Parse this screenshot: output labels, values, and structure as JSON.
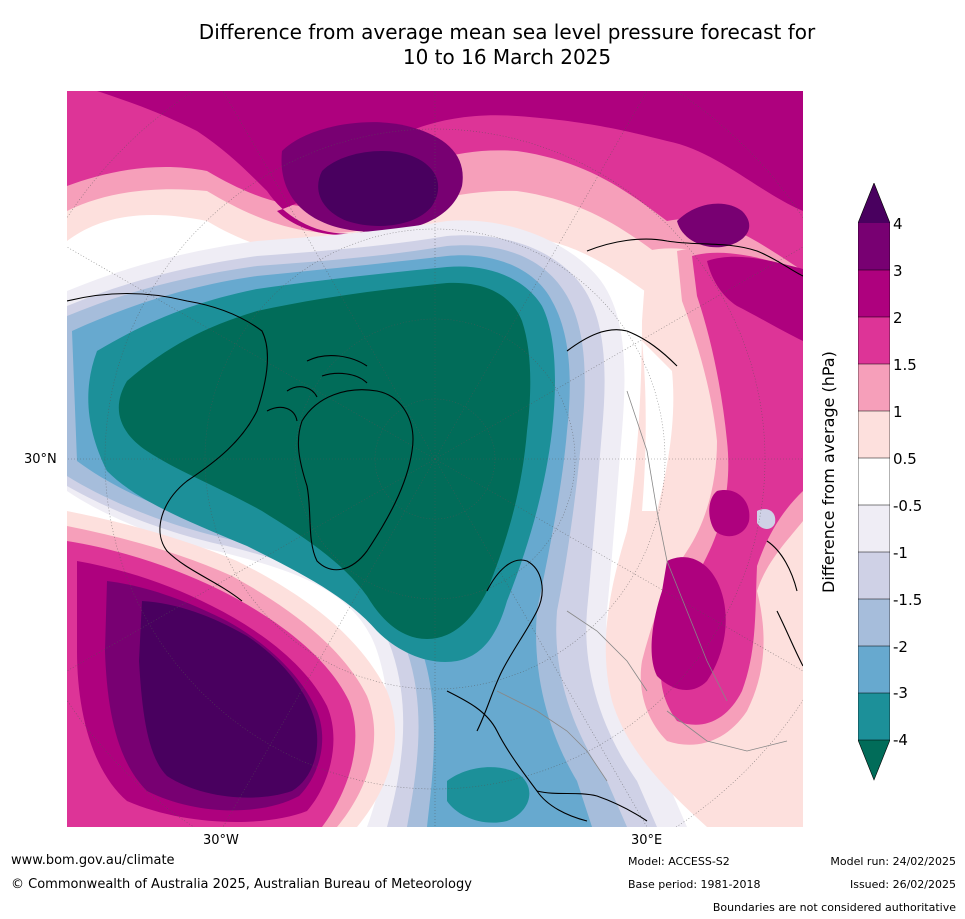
{
  "title": {
    "line1": "Difference from average mean sea level pressure forecast for",
    "line2": "10 to 16 March 2025"
  },
  "map": {
    "projection": "north-polar-stereographic",
    "lon_labels": [
      "30°W",
      "30°E"
    ],
    "lat_labels": [
      "30°N"
    ]
  },
  "colorbar": {
    "label": "Difference from average (hPa)",
    "ticks": [
      "4",
      "3",
      "2",
      "1.5",
      "1",
      "0.5",
      "-0.5",
      "-1",
      "-1.5",
      "-2",
      "-3",
      "-4"
    ],
    "colors": {
      "above_4": "#49005f",
      "3_to_4": "#780072",
      "2_to_3": "#ae017e",
      "1.5_to_2": "#dd3497",
      "1_to_1.5": "#f69fba",
      "0.5_to_1": "#fde0dd",
      "neutral": "#ffffff",
      "-1_to_-0.5": "#efedf5",
      "-1.5_to_-1": "#cfd1e6",
      "-2_to_-1.5": "#a6bddb",
      "-3_to_-2": "#67a9cf",
      "-4_to_-3": "#1c9099",
      "below_-4": "#016c59"
    }
  },
  "footer": {
    "website": "www.bom.gov.au/climate",
    "copyright": "© Commonwealth of Australia 2025, Australian Bureau of Meteorology",
    "model": "Model: ACCESS-S2",
    "base_period": "Base period: 1981-2018",
    "model_run": "Model run: 24/02/2025",
    "issued": "Issued: 26/02/2025",
    "disclaimer": "Boundaries are not considered authoritative"
  }
}
